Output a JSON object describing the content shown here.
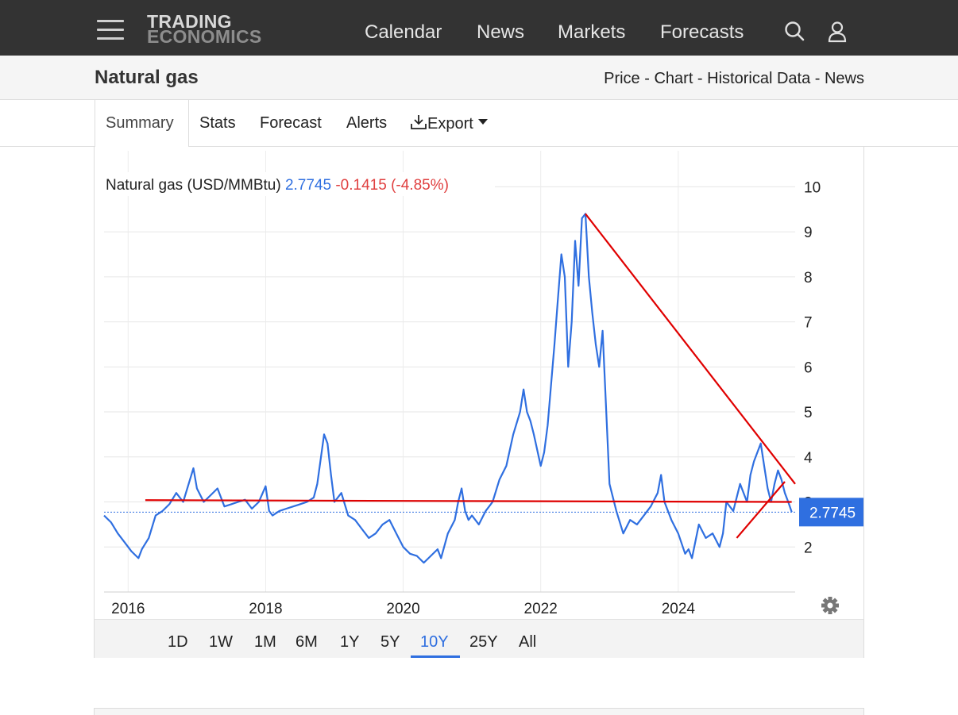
{
  "header": {
    "logo_line1": "TRADING",
    "logo_line2": "ECONOMICS",
    "nav": [
      "Calendar",
      "News",
      "Markets",
      "Forecasts"
    ],
    "icons": [
      "menu-icon",
      "search-icon",
      "user-icon"
    ]
  },
  "subheader": {
    "title": "Natural gas",
    "links": [
      "Price",
      "Chart",
      "Historical Data",
      "News"
    ],
    "separator": " - "
  },
  "tabs": {
    "items": [
      "Summary",
      "Stats",
      "Forecast",
      "Alerts",
      "Export"
    ],
    "active": "Summary"
  },
  "ranges": {
    "items": [
      "1D",
      "1W",
      "1M",
      "6M",
      "1Y",
      "5Y",
      "10Y",
      "25Y",
      "All"
    ],
    "active": "10Y"
  },
  "colors": {
    "line": "#2f6fe0",
    "trendline": "#e00000",
    "change_negative": "#e04040",
    "topbar": "#333333"
  },
  "chart_data": {
    "type": "line",
    "series_label": "Natural gas (USD/MMBtu)",
    "last_value": "2.7745",
    "change": "-0.1415",
    "change_pct": "(-4.85%)",
    "price_tag": "2.7745",
    "yticks": [
      "2",
      "3",
      "4",
      "5",
      "6",
      "7",
      "8",
      "9",
      "10"
    ],
    "xticks": [
      "2016",
      "2018",
      "2020",
      "2022",
      "2024"
    ],
    "ylim": [
      1,
      10.8
    ],
    "xlim": [
      2015.65,
      2025.7
    ],
    "grid": true,
    "series": [
      {
        "name": "Natural gas",
        "x": [
          2015.65,
          2015.75,
          2015.85,
          2015.95,
          2016.05,
          2016.15,
          2016.2,
          2016.3,
          2016.4,
          2016.5,
          2016.6,
          2016.7,
          2016.8,
          2016.9,
          2016.95,
          2017.0,
          2017.1,
          2017.2,
          2017.3,
          2017.4,
          2017.5,
          2017.6,
          2017.7,
          2017.8,
          2017.9,
          2018.0,
          2018.05,
          2018.1,
          2018.2,
          2018.3,
          2018.4,
          2018.5,
          2018.6,
          2018.7,
          2018.75,
          2018.85,
          2018.9,
          2018.95,
          2019.0,
          2019.1,
          2019.2,
          2019.3,
          2019.4,
          2019.5,
          2019.6,
          2019.7,
          2019.8,
          2019.9,
          2020.0,
          2020.1,
          2020.2,
          2020.3,
          2020.4,
          2020.5,
          2020.55,
          2020.65,
          2020.75,
          2020.8,
          2020.85,
          2020.9,
          2020.95,
          2021.0,
          2021.1,
          2021.2,
          2021.3,
          2021.4,
          2021.5,
          2021.6,
          2021.7,
          2021.75,
          2021.8,
          2021.85,
          2021.9,
          2022.0,
          2022.05,
          2022.1,
          2022.2,
          2022.25,
          2022.3,
          2022.35,
          2022.4,
          2022.45,
          2022.5,
          2022.55,
          2022.6,
          2022.65,
          2022.7,
          2022.75,
          2022.8,
          2022.85,
          2022.9,
          2023.0,
          2023.1,
          2023.2,
          2023.3,
          2023.4,
          2023.5,
          2023.6,
          2023.7,
          2023.75,
          2023.8,
          2023.9,
          2024.0,
          2024.1,
          2024.15,
          2024.2,
          2024.3,
          2024.4,
          2024.5,
          2024.6,
          2024.65,
          2024.7,
          2024.8,
          2024.9,
          2025.0,
          2025.05,
          2025.1,
          2025.15,
          2025.2,
          2025.25,
          2025.3,
          2025.35,
          2025.4,
          2025.45,
          2025.5,
          2025.55,
          2025.6,
          2025.65
        ],
        "values": [
          2.7,
          2.55,
          2.3,
          2.1,
          1.9,
          1.75,
          1.95,
          2.2,
          2.7,
          2.8,
          2.95,
          3.2,
          3.0,
          3.5,
          3.75,
          3.3,
          3.0,
          3.15,
          3.3,
          2.9,
          2.95,
          3.0,
          3.05,
          2.85,
          3.0,
          3.35,
          2.8,
          2.7,
          2.8,
          2.85,
          2.9,
          2.95,
          3.0,
          3.1,
          3.4,
          4.5,
          4.3,
          3.6,
          3.0,
          3.2,
          2.7,
          2.6,
          2.4,
          2.2,
          2.3,
          2.5,
          2.6,
          2.3,
          2.0,
          1.85,
          1.8,
          1.65,
          1.8,
          1.95,
          1.75,
          2.3,
          2.6,
          3.0,
          3.3,
          2.8,
          2.6,
          2.7,
          2.5,
          2.8,
          3.0,
          3.5,
          3.8,
          4.5,
          5.0,
          5.5,
          5.0,
          4.8,
          4.5,
          3.8,
          4.1,
          4.7,
          6.5,
          7.5,
          8.5,
          8.0,
          6.0,
          7.0,
          8.8,
          7.8,
          9.3,
          9.4,
          8.0,
          7.2,
          6.5,
          6.0,
          6.8,
          3.4,
          2.8,
          2.3,
          2.6,
          2.5,
          2.7,
          2.9,
          3.2,
          3.6,
          3.0,
          2.6,
          2.3,
          1.85,
          1.95,
          1.75,
          2.5,
          2.2,
          2.3,
          2.0,
          2.3,
          3.0,
          2.8,
          3.4,
          3.0,
          3.6,
          3.9,
          4.1,
          4.3,
          3.8,
          3.3,
          3.0,
          3.4,
          3.7,
          3.5,
          3.2,
          3.0,
          2.7745
        ]
      }
    ],
    "trendlines": [
      {
        "x": [
          2016.25,
          2025.65
        ],
        "y": [
          3.04,
          3.0
        ]
      },
      {
        "x": [
          2022.65,
          2025.7
        ],
        "y": [
          9.4,
          3.4
        ]
      },
      {
        "x": [
          2024.85,
          2025.55
        ],
        "y": [
          2.2,
          3.45
        ]
      }
    ]
  }
}
